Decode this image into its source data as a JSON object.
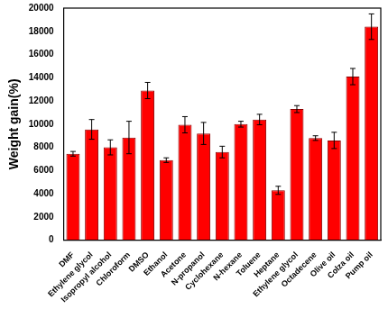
{
  "chart_data": {
    "type": "bar",
    "y_label": "Weight gain(%)",
    "categories": [
      "DMF",
      "Ethylene glycol",
      "Isopropyl alcohol",
      "Chloroform",
      "DMSO",
      "Ethanol",
      "Acetone",
      "N-propanol",
      "Cyclohexane",
      "N-hexane",
      "Toluene",
      "Heptane",
      "Ethylene glycol",
      "Octadecene",
      "Olive oil",
      "Colza oil",
      "Pump oil"
    ],
    "values": [
      7450,
      9550,
      8000,
      8850,
      12900,
      6900,
      9950,
      9200,
      7600,
      10000,
      10400,
      4300,
      11300,
      8800,
      8600,
      14100,
      18400
    ],
    "errors": [
      200,
      850,
      650,
      1400,
      700,
      200,
      700,
      950,
      500,
      250,
      450,
      350,
      300,
      200,
      700,
      700,
      1100
    ],
    "color": "#ff0000",
    "ylim": [
      0,
      20000
    ],
    "yticks": [
      0,
      2000,
      4000,
      6000,
      8000,
      10000,
      12000,
      14000,
      16000,
      18000,
      20000
    ],
    "grid": false
  }
}
